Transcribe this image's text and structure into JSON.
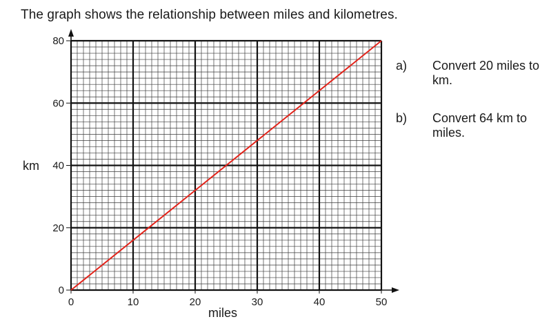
{
  "intro": "The graph shows the relationship between miles and kilometres.",
  "questions": [
    {
      "letter": "a)",
      "text": "Convert 20 miles to km."
    },
    {
      "letter": "b)",
      "text": "Convert 64 km to miles."
    }
  ],
  "chart_data": {
    "type": "line",
    "title": "",
    "xlabel": "miles",
    "ylabel": "km",
    "xlim": [
      0,
      50
    ],
    "ylim": [
      0,
      80
    ],
    "x_ticks": [
      0,
      10,
      20,
      30,
      40,
      50
    ],
    "y_ticks": [
      0,
      20,
      40,
      60,
      80
    ],
    "grid": true,
    "series": [
      {
        "x": [
          0,
          50
        ],
        "y": [
          0,
          80
        ],
        "color": "#e2231a"
      }
    ]
  }
}
